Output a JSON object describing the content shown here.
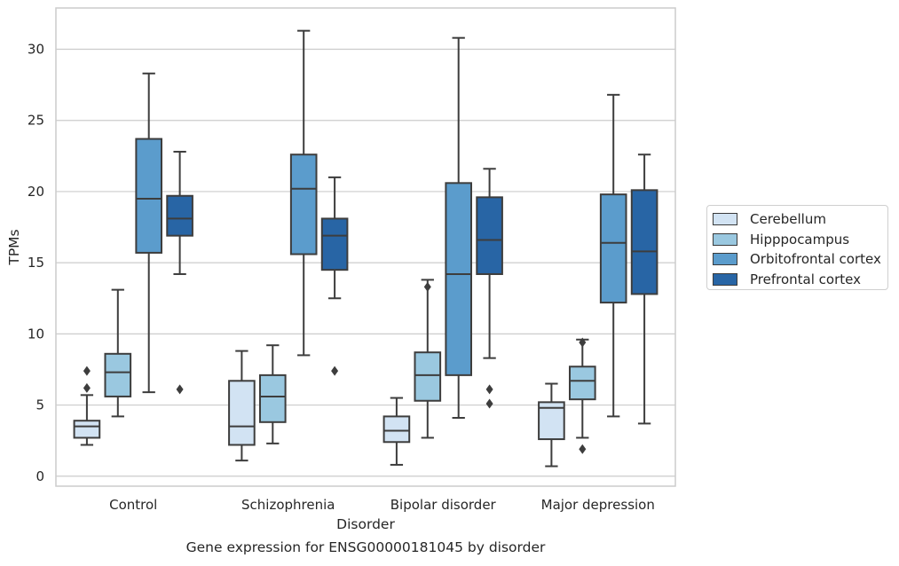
{
  "chart_data": {
    "type": "box",
    "title": "Gene expression for ENSG00000181045 by disorder",
    "xlabel": "Disorder",
    "ylabel": "TPMs",
    "ylim": [
      -0.7,
      32.9
    ],
    "yticks": [
      0,
      5,
      10,
      15,
      20,
      25,
      30
    ],
    "grid": "horizontal",
    "legend_position": "right",
    "categories": [
      "Control",
      "Schizophrenia",
      "Bipolar disorder",
      "Major depression"
    ],
    "series": [
      {
        "name": "Cerebellum",
        "color": "#d2e3f3",
        "boxes": [
          {
            "whisker_low": 2.2,
            "q1": 2.7,
            "median": 3.5,
            "q3": 3.9,
            "whisker_high": 5.7,
            "outliers": [
              6.2,
              7.4
            ]
          },
          {
            "whisker_low": 1.1,
            "q1": 2.2,
            "median": 3.5,
            "q3": 6.7,
            "whisker_high": 8.8,
            "outliers": []
          },
          {
            "whisker_low": 0.8,
            "q1": 2.4,
            "median": 3.2,
            "q3": 4.2,
            "whisker_high": 5.5,
            "outliers": []
          },
          {
            "whisker_low": 0.7,
            "q1": 2.6,
            "median": 4.8,
            "q3": 5.2,
            "whisker_high": 6.5,
            "outliers": []
          }
        ]
      },
      {
        "name": "Hipppocampus",
        "color": "#9ac8e0",
        "boxes": [
          {
            "whisker_low": 4.2,
            "q1": 5.6,
            "median": 7.3,
            "q3": 8.6,
            "whisker_high": 13.1,
            "outliers": []
          },
          {
            "whisker_low": 2.3,
            "q1": 3.8,
            "median": 5.6,
            "q3": 7.1,
            "whisker_high": 9.2,
            "outliers": []
          },
          {
            "whisker_low": 2.7,
            "q1": 5.3,
            "median": 7.1,
            "q3": 8.7,
            "whisker_high": 13.8,
            "outliers": [
              13.3
            ]
          },
          {
            "whisker_low": 2.7,
            "q1": 5.4,
            "median": 6.7,
            "q3": 7.7,
            "whisker_high": 9.6,
            "outliers": [
              9.4,
              1.9
            ]
          }
        ]
      },
      {
        "name": "Orbitofrontal cortex",
        "color": "#5b9ccc",
        "boxes": [
          {
            "whisker_low": 5.9,
            "q1": 15.7,
            "median": 19.5,
            "q3": 23.7,
            "whisker_high": 28.3,
            "outliers": []
          },
          {
            "whisker_low": 8.5,
            "q1": 15.6,
            "median": 20.2,
            "q3": 22.6,
            "whisker_high": 31.3,
            "outliers": []
          },
          {
            "whisker_low": 4.1,
            "q1": 7.1,
            "median": 14.2,
            "q3": 20.6,
            "whisker_high": 30.8,
            "outliers": []
          },
          {
            "whisker_low": 4.2,
            "q1": 12.2,
            "median": 16.4,
            "q3": 19.8,
            "whisker_high": 26.8,
            "outliers": []
          }
        ]
      },
      {
        "name": "Prefrontal cortex",
        "color": "#2865a5",
        "boxes": [
          {
            "whisker_low": 14.2,
            "q1": 16.9,
            "median": 18.1,
            "q3": 19.7,
            "whisker_high": 22.8,
            "outliers": [
              6.1
            ]
          },
          {
            "whisker_low": 12.5,
            "q1": 14.5,
            "median": 16.9,
            "q3": 18.1,
            "whisker_high": 21.0,
            "outliers": [
              7.4
            ]
          },
          {
            "whisker_low": 8.3,
            "q1": 14.2,
            "median": 16.6,
            "q3": 19.6,
            "whisker_high": 21.6,
            "outliers": [
              6.1,
              5.1
            ]
          },
          {
            "whisker_low": 3.7,
            "q1": 12.8,
            "median": 15.8,
            "q3": 20.1,
            "whisker_high": 22.6,
            "outliers": []
          }
        ]
      }
    ]
  }
}
